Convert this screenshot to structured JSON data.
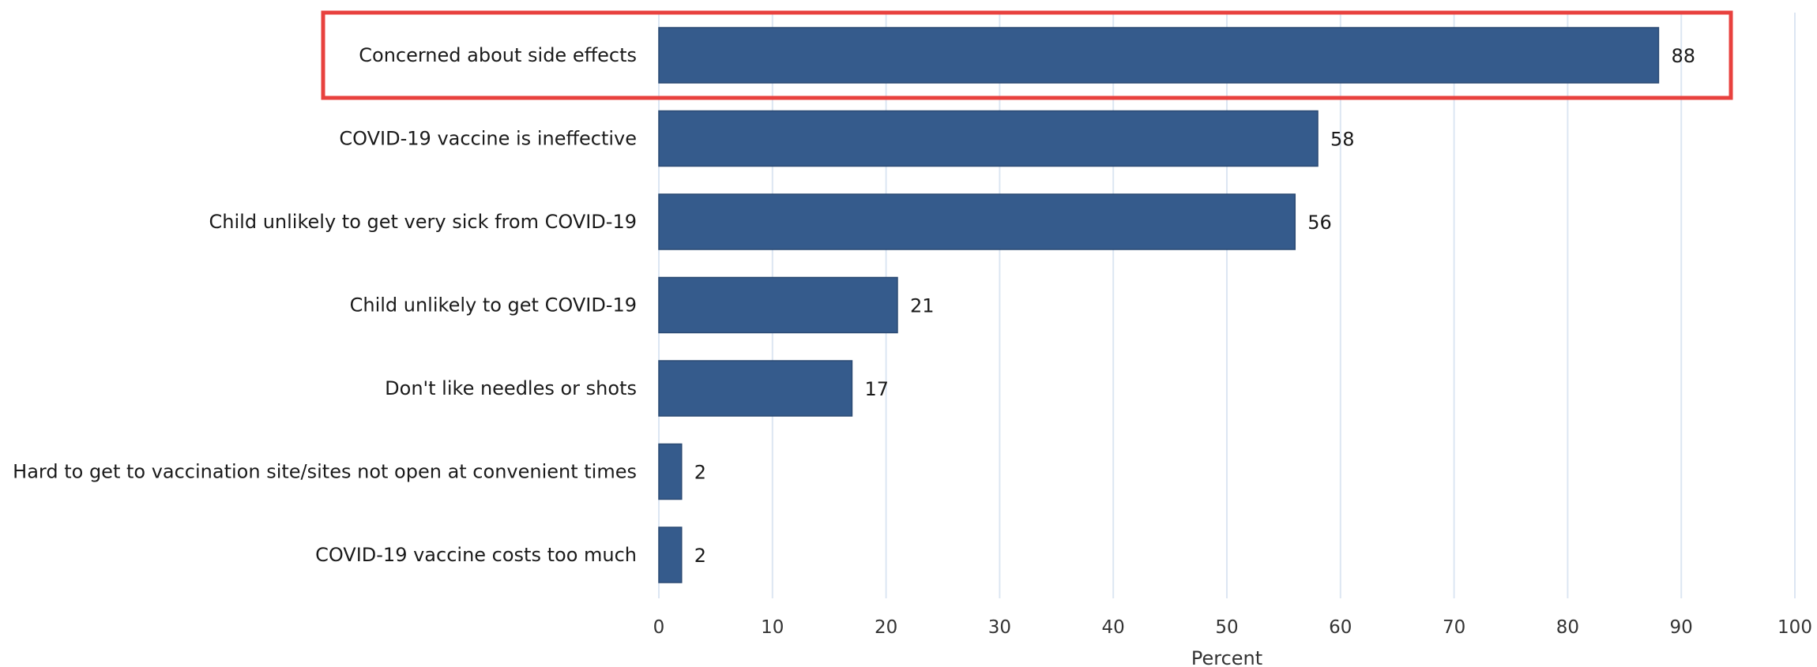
{
  "chart_data": {
    "type": "bar",
    "orientation": "horizontal",
    "categories": [
      "Concerned about side effects",
      "COVID-19 vaccine is ineffective",
      "Child unlikely to get very sick from COVID-19",
      "Child unlikely to get COVID-19",
      "Don't like needles or shots",
      "Hard to get to vaccination site/sites not open at convenient times",
      "COVID-19 vaccine costs too much"
    ],
    "values": [
      88,
      58,
      56,
      21,
      17,
      2,
      2
    ],
    "value_labels": [
      "88",
      "58",
      "56",
      "21",
      "17",
      "2",
      "2"
    ],
    "xlabel": "Percent",
    "ylabel": "",
    "xlim": [
      0,
      100
    ],
    "x_ticks": [
      0,
      10,
      20,
      30,
      40,
      50,
      60,
      70,
      80,
      90,
      100
    ],
    "x_tick_labels": [
      "0",
      "10",
      "20",
      "30",
      "40",
      "50",
      "60",
      "70",
      "80",
      "90",
      "100"
    ],
    "grid": "vertical",
    "highlighted_category": "Concerned about side effects"
  },
  "colors": {
    "bar": "#355b8c",
    "bar_edge": "#2b4a73",
    "gridline": "#dce6f2",
    "highlight_box": "#e8413e"
  }
}
